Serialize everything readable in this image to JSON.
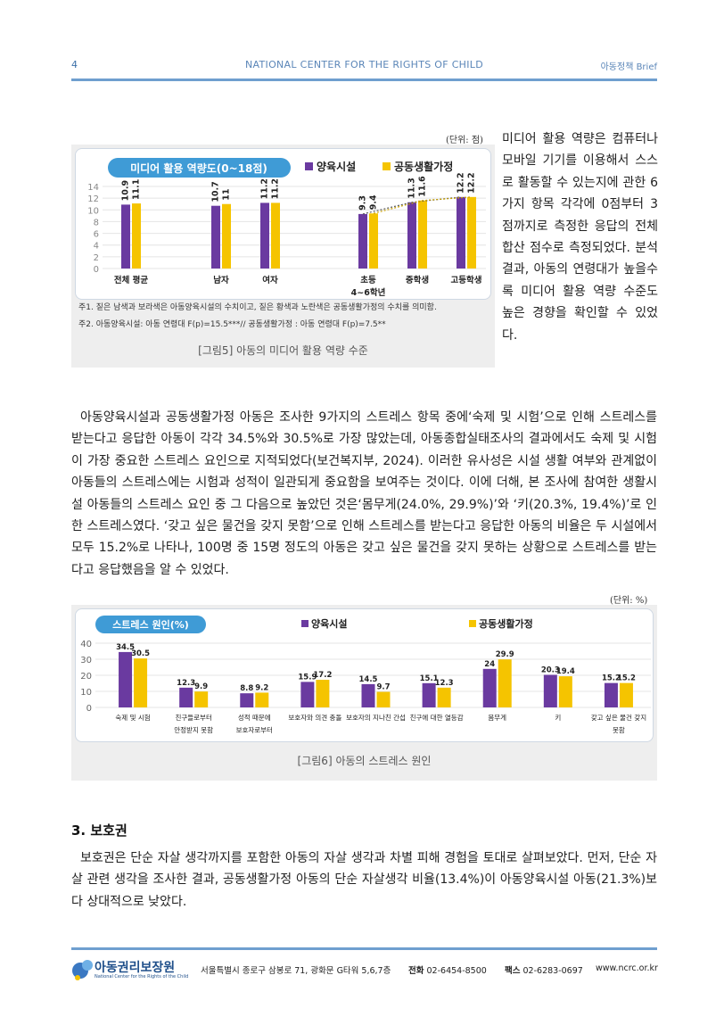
{
  "header": {
    "page_number": "4",
    "center_title": "NATIONAL CENTER FOR THE RIGHTS OF CHILD",
    "right_title": "아동정책 Brief"
  },
  "figure5": {
    "unit": "(단위: 점)",
    "legend_title": "미디어 활용 역량도(0~18점)",
    "notes": [
      "주1. 짙은 남색과 보라색은 아동양육시설의 수치이고, 짙은 황색과 노란색은 공동생활가정의 수치를 의미함.",
      "주2. 아동양육시설: 아동 연령대 F(p)=15.5***// 공동생활가정 : 아동 연령대 F(p)=7.5**"
    ],
    "caption": "[그림5] 아동의 미디어 활용 역량 수준"
  },
  "side_text": "미디어 활용 역량은 컴퓨터나 모바일 기기를 이용해서 스스로 활동할 수 있는지에 관한 6가지 항목 각각에 0점부터 3점까지로 측정한 응답의 전체 합산 점수로 측정되었다. 분석 결과, 아동의 연령대가 높을수록 미디어 활용 역량 수준도 높은 경향을 확인할 수 있었다.",
  "paragraph1": "아동양육시설과 공동생활가정 아동은 조사한 9가지의 스트레스 항목 중에‘숙제 및 시험’으로 인해 스트레스를 받는다고 응답한 아동이 각각 34.5%와 30.5%로 가장 많았는데, 아동종합실태조사의 결과에서도 숙제 및 시험이 가장 중요한 스트레스 요인으로 지적되었다(보건복지부, 2024). 이러한 유사성은 시설 생활 여부와 관계없이 아동들의 스트레스에는 시험과 성적이 일관되게 중요함을 보여주는 것이다. 이에 더해, 본 조사에 참여한 생활시설 아동들의 스트레스 요인 중 그 다음으로 높았던 것은‘몸무게(24.0%, 29.9%)’와 ‘키(20.3%, 19.4%)’로 인한 스트레스였다. ‘갖고 싶은 물건을 갖지 못함’으로 인해 스트레스를 받는다고 응답한 아동의 비율은 두 시설에서 모두 15.2%로 나타나, 100명 중 15명 정도의 아동은 갖고 싶은 물건을 갖지 못하는 상황으로 스트레스를 받는다고 응답했음을 알 수 있었다.",
  "figure6": {
    "unit": "(단위: %)",
    "legend_title": "스트레스 원인(%)",
    "caption": "[그림6] 아동의 스트레스 원인"
  },
  "section3": {
    "title": "3. 보호권",
    "paragraph": "보호권은 단순 자살 생각까지를 포함한 아동의 자살 생각과 차별 피해 경험을 토대로 살펴보았다. 먼저, 단순 자살 관련 생각을 조사한 결과, 공동생활가정 아동의 단순 자살생각 비율(13.4%)이 아동양육시설 아동(21.3%)보다 상대적으로 낮았다."
  },
  "footer": {
    "logo_text": "아동권리보장원",
    "logo_sub": "National Center for the Rights of the Child",
    "address": "서울특별시 종로구 삼봉로 71, 광화문 G타워 5,6,7층",
    "phone_label": "전화",
    "phone": "02-6454-8500",
    "fax_label": "팩스",
    "fax": "02-6283-0697",
    "website": "www.ncrc.or.kr"
  },
  "chart_data": [
    {
      "type": "bar",
      "title": "미디어 활용 역량도(0~18점)",
      "categories": [
        "전체 평균",
        "남자",
        "여자",
        "초등 4~6학년",
        "중학생",
        "고등학생"
      ],
      "category_labels": [
        "전체 평균",
        "남자",
        "여자",
        "초등",
        "중학생",
        "고등학생"
      ],
      "category_sublabel": "4~6학년",
      "series": [
        {
          "name": "양육시설",
          "values": [
            10.9,
            10.7,
            11.2,
            9.3,
            11.3,
            12.2
          ]
        },
        {
          "name": "공동생활가정",
          "values": [
            11.1,
            11,
            11.2,
            9.4,
            11.6,
            12.2
          ]
        }
      ],
      "value_labels": [
        [
          "10.9",
          "10.7",
          "11.2",
          "9.3",
          "11.3",
          "12.2"
        ],
        [
          "11.1",
          "11",
          "11.2",
          "9.4",
          "11.6",
          "12.2"
        ]
      ],
      "ylim": [
        0,
        14
      ],
      "yticks": [
        0,
        2,
        4,
        6,
        8,
        10,
        12,
        14
      ],
      "legend": "top",
      "colors": {
        "series1": "#6a3aa0",
        "series2": "#f5c400",
        "series1_dark": "#1f2d6b"
      }
    },
    {
      "type": "bar",
      "title": "스트레스 원인(%)",
      "categories": [
        "숙제 및 시험",
        "친구들로부터 안정받지 못함",
        "성적 때문에 보호자로부터",
        "보호자와 의견 충돌",
        "보호자의 지나친 간섭",
        "친구에 대한 열등감",
        "몸무게",
        "키",
        "갖고 싶은 물건 갖지 못함"
      ],
      "category_lines": [
        [
          "숙제 및 시험"
        ],
        [
          "친구들로부터",
          "안정받지 못함"
        ],
        [
          "성적 때문에",
          "보호자로부터"
        ],
        [
          "보호자와 의견 충돌"
        ],
        [
          "보호자의 지나친 간섭"
        ],
        [
          "친구에 대한 열등감"
        ],
        [
          "몸무게"
        ],
        [
          "키"
        ],
        [
          "갖고 싶은 물건 갖지",
          "못함"
        ]
      ],
      "series": [
        {
          "name": "양육시설",
          "values": [
            34.5,
            12.3,
            8.8,
            15.9,
            14.5,
            15.1,
            24,
            20.3,
            15.2
          ]
        },
        {
          "name": "공동생활가정",
          "values": [
            30.5,
            9.9,
            9.2,
            17.2,
            9.7,
            12.3,
            29.9,
            19.4,
            15.2
          ]
        }
      ],
      "value_labels": [
        [
          "34.5",
          "12.3",
          "8.8",
          "15.9",
          "14.5",
          "15.1",
          "24",
          "20.3",
          "15.2"
        ],
        [
          "30.5",
          "9.9",
          "9.2",
          "17.2",
          "9.7",
          "12.3",
          "29.9",
          "19.4",
          "15.2"
        ]
      ],
      "ylim": [
        0,
        40
      ],
      "yticks": [
        0,
        10,
        20,
        30,
        40
      ],
      "legend": "top",
      "colors": {
        "series1": "#6a3aa0",
        "series2": "#f5c400"
      }
    }
  ]
}
